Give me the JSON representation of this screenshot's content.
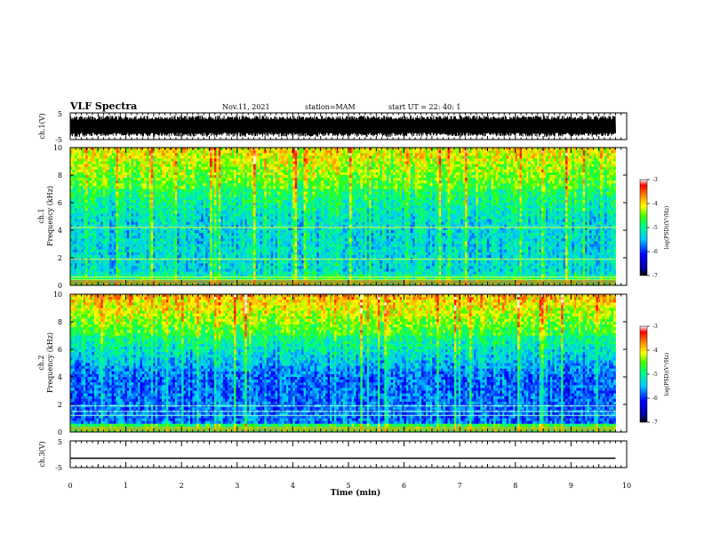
{
  "header": {
    "title": "VLF Spectra",
    "date": "Nov.11, 2021",
    "station": "station=MAM",
    "start": "start UT = 22: 40: 1"
  },
  "chart_data": [
    {
      "type": "line",
      "panel": "waveform ch.1",
      "ylabel": "ch.1(V)",
      "ylim": [
        -5,
        5
      ],
      "yticks": [
        "5",
        "-5"
      ],
      "xlim": [
        0,
        10
      ],
      "description_values": {
        "signal_range_approx": [
          -4,
          4
        ]
      }
    },
    {
      "type": "heatmap",
      "panel": "spectrogram ch.1",
      "ylabel": "ch.1 Frequency (kHz)",
      "ylim": [
        0,
        10
      ],
      "yticks": [
        "0",
        "2",
        "4",
        "6",
        "8",
        "10"
      ],
      "xlim": [
        0,
        10
      ],
      "colorbar": {
        "label": "log(PSD)(V²/Hz)",
        "range": [
          -7,
          -3
        ],
        "ticks": [
          "-3",
          "-4",
          "-5",
          "-6",
          "-7"
        ]
      },
      "narrowband_lines_khz": [
        0.4,
        0.6,
        1.9,
        4.2
      ],
      "data_end_min": 9.8
    },
    {
      "type": "heatmap",
      "panel": "spectrogram ch.2",
      "ylabel": "ch.2 Frequency (kHz)",
      "ylim": [
        0,
        10
      ],
      "yticks": [
        "0",
        "2",
        "4",
        "6",
        "8",
        "10"
      ],
      "xlim": [
        0,
        10
      ],
      "colorbar": {
        "label": "log(PSD)(V²/Hz)",
        "range": [
          -7,
          -3
        ],
        "ticks": [
          "-3",
          "-4",
          "-5",
          "-6",
          "-7"
        ]
      },
      "narrowband_lines_khz": [
        1.2,
        1.5,
        1.9
      ],
      "data_end_min": 9.8
    },
    {
      "type": "line",
      "panel": "waveform ch.3",
      "ylabel": "ch.3(V)",
      "ylim": [
        -5,
        5
      ],
      "yticks": [
        "5",
        "-5"
      ],
      "xlim": [
        0,
        10
      ],
      "constant_value": -1.5
    }
  ],
  "xaxis": {
    "label": "Time (min)",
    "ticks": [
      "0",
      "1",
      "2",
      "3",
      "4",
      "5",
      "6",
      "7",
      "8",
      "9",
      "10"
    ]
  }
}
